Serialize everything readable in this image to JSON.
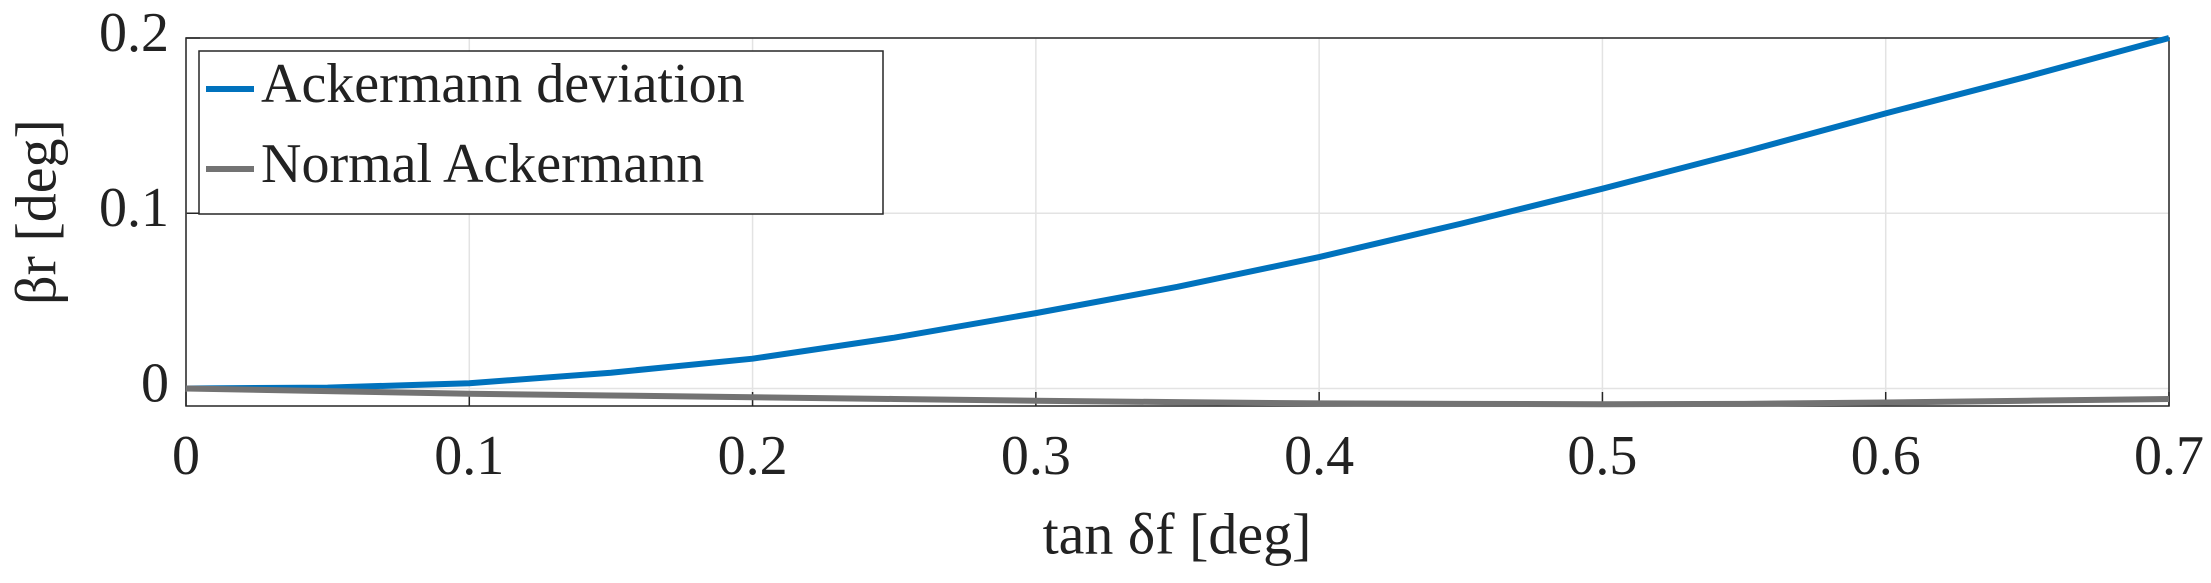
{
  "chart_data": {
    "type": "line",
    "xlabel": "tan δf [deg]",
    "ylabel": "βr [deg]",
    "x": [
      0,
      0.05,
      0.1,
      0.15,
      0.2,
      0.25,
      0.3,
      0.35,
      0.4,
      0.45,
      0.5,
      0.55,
      0.6,
      0.65,
      0.7
    ],
    "series": [
      {
        "name": "Ackermann deviation",
        "color": "#0072bd",
        "values": [
          0,
          0.0005,
          0.003,
          0.009,
          0.017,
          0.029,
          0.043,
          0.058,
          0.075,
          0.094,
          0.114,
          0.135,
          0.157,
          0.178,
          0.2
        ]
      },
      {
        "name": "Normal Ackermann",
        "color": "#737373",
        "values": [
          0,
          -0.0015,
          -0.003,
          -0.004,
          -0.005,
          -0.006,
          -0.007,
          -0.0078,
          -0.0085,
          -0.0088,
          -0.009,
          -0.0088,
          -0.008,
          -0.007,
          -0.006
        ]
      }
    ],
    "xlim": [
      0,
      0.7
    ],
    "xticks": [
      0,
      0.1,
      0.2,
      0.3,
      0.4,
      0.5,
      0.6,
      0.7
    ],
    "ylim": [
      -0.01,
      0.2
    ],
    "yticks": [
      0,
      0.1,
      0.2
    ],
    "grid": true,
    "legend": "upper-left"
  }
}
